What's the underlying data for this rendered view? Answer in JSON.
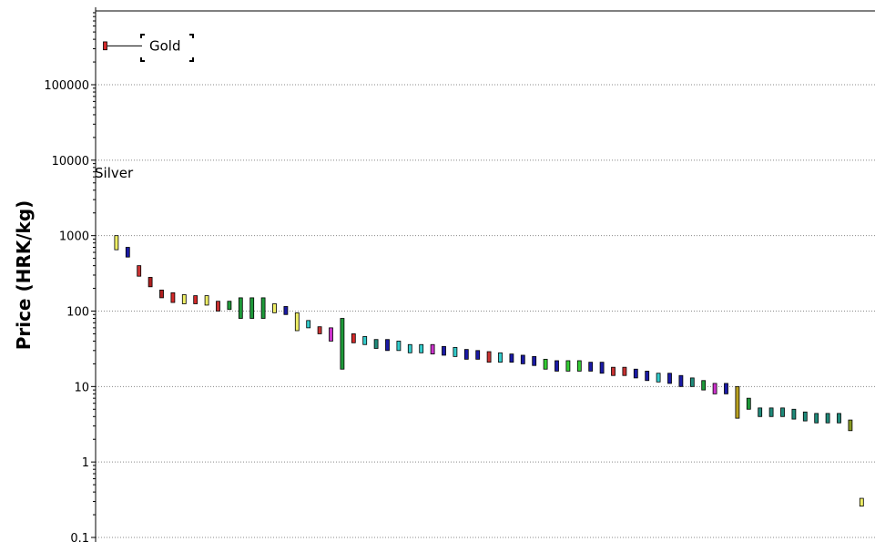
{
  "chart_data": {
    "type": "floating-bar",
    "ylabel": "Price (HRK/kg)",
    "yscale": "log",
    "ylim": [
      0.09,
      1000000
    ],
    "yticks": [
      {
        "value": 0.1,
        "label": "0.1"
      },
      {
        "value": 1,
        "label": "1"
      },
      {
        "value": 10,
        "label": "10"
      },
      {
        "value": 100,
        "label": "100"
      },
      {
        "value": 1000,
        "label": "1000"
      },
      {
        "value": 10000,
        "label": "10000"
      },
      {
        "value": 100000,
        "label": "100000"
      }
    ],
    "grid": {
      "horizontal": true,
      "style": "dotted"
    },
    "annotations": [
      {
        "text": "Gold",
        "boxed": true
      },
      {
        "text": "Silver",
        "boxed": false
      }
    ],
    "series": [
      {
        "low": 290000,
        "high": 370000,
        "color": "#d42a2a"
      },
      {
        "low": 650,
        "high": 1000,
        "color": "#eeee66"
      },
      {
        "low": 520,
        "high": 700,
        "color": "#1a1aa6"
      },
      {
        "low": 290,
        "high": 400,
        "color": "#c83232"
      },
      {
        "low": 210,
        "high": 280,
        "color": "#b01f1f"
      },
      {
        "low": 150,
        "high": 190,
        "color": "#b01f1f"
      },
      {
        "low": 130,
        "high": 175,
        "color": "#d42a2a"
      },
      {
        "low": 125,
        "high": 165,
        "color": "#eeee66"
      },
      {
        "low": 125,
        "high": 160,
        "color": "#d42a2a"
      },
      {
        "low": 120,
        "high": 160,
        "color": "#eeee66"
      },
      {
        "low": 100,
        "high": 135,
        "color": "#c83232"
      },
      {
        "low": 105,
        "high": 135,
        "color": "#1f9a3a"
      },
      {
        "low": 80,
        "high": 150,
        "color": "#1f9a3a"
      },
      {
        "low": 80,
        "high": 150,
        "color": "#1f9a3a"
      },
      {
        "low": 80,
        "high": 150,
        "color": "#1f9a3a"
      },
      {
        "low": 95,
        "high": 125,
        "color": "#eeee66"
      },
      {
        "low": 90,
        "high": 115,
        "color": "#1a1aa6"
      },
      {
        "low": 55,
        "high": 95,
        "color": "#eeee66"
      },
      {
        "low": 60,
        "high": 75,
        "color": "#33cccc"
      },
      {
        "low": 50,
        "high": 62,
        "color": "#c83232"
      },
      {
        "low": 40,
        "high": 60,
        "color": "#cc33cc"
      },
      {
        "low": 17,
        "high": 80,
        "color": "#1f9a3a"
      },
      {
        "low": 38,
        "high": 50,
        "color": "#d42a2a"
      },
      {
        "low": 36,
        "high": 46,
        "color": "#33cccc"
      },
      {
        "low": 32,
        "high": 42,
        "color": "#1f8a7a"
      },
      {
        "low": 30,
        "high": 42,
        "color": "#1a1aa6"
      },
      {
        "low": 30,
        "high": 40,
        "color": "#33cccc"
      },
      {
        "low": 28,
        "high": 36,
        "color": "#33cccc"
      },
      {
        "low": 28,
        "high": 36,
        "color": "#33cccc"
      },
      {
        "low": 27,
        "high": 36,
        "color": "#cc33cc"
      },
      {
        "low": 26,
        "high": 34,
        "color": "#1a1aa6"
      },
      {
        "low": 25,
        "high": 33,
        "color": "#33cccc"
      },
      {
        "low": 23,
        "high": 31,
        "color": "#1a1aa6"
      },
      {
        "low": 23,
        "high": 30,
        "color": "#1a1aa6"
      },
      {
        "low": 21,
        "high": 29,
        "color": "#c83232"
      },
      {
        "low": 21,
        "high": 28,
        "color": "#33cccc"
      },
      {
        "low": 21,
        "high": 27,
        "color": "#1a1aa6"
      },
      {
        "low": 20,
        "high": 26,
        "color": "#1a1aa6"
      },
      {
        "low": 19,
        "high": 25,
        "color": "#1a1aa6"
      },
      {
        "low": 17,
        "high": 23,
        "color": "#33cc33"
      },
      {
        "low": 16,
        "high": 22,
        "color": "#1a1aa6"
      },
      {
        "low": 16,
        "high": 22,
        "color": "#33cc33"
      },
      {
        "low": 16,
        "high": 22,
        "color": "#33cc33"
      },
      {
        "low": 16,
        "high": 21,
        "color": "#1a1aa6"
      },
      {
        "low": 15,
        "high": 21,
        "color": "#1a1aa6"
      },
      {
        "low": 14,
        "high": 18,
        "color": "#c83232"
      },
      {
        "low": 14,
        "high": 18,
        "color": "#c83232"
      },
      {
        "low": 13,
        "high": 17,
        "color": "#1a1aa6"
      },
      {
        "low": 12,
        "high": 16,
        "color": "#1a1aa6"
      },
      {
        "low": 11.5,
        "high": 15,
        "color": "#33cccc"
      },
      {
        "low": 11,
        "high": 15,
        "color": "#1a1aa6"
      },
      {
        "low": 10,
        "high": 14,
        "color": "#1a1aa6"
      },
      {
        "low": 10,
        "high": 13,
        "color": "#1f8a7a"
      },
      {
        "low": 9,
        "high": 12,
        "color": "#1f9a3a"
      },
      {
        "low": 8,
        "high": 11,
        "color": "#cc33cc"
      },
      {
        "low": 8,
        "high": 11,
        "color": "#1a1aa6"
      },
      {
        "low": 3.8,
        "high": 10,
        "color": "#b8a020"
      },
      {
        "low": 5,
        "high": 7,
        "color": "#1f9a3a"
      },
      {
        "low": 4,
        "high": 5.2,
        "color": "#1f8a7a"
      },
      {
        "low": 4,
        "high": 5.2,
        "color": "#1f8a7a"
      },
      {
        "low": 4,
        "high": 5.2,
        "color": "#1f8a7a"
      },
      {
        "low": 3.7,
        "high": 5,
        "color": "#1f8a7a"
      },
      {
        "low": 3.5,
        "high": 4.6,
        "color": "#1f8a7a"
      },
      {
        "low": 3.3,
        "high": 4.4,
        "color": "#1f8a7a"
      },
      {
        "low": 3.3,
        "high": 4.4,
        "color": "#1f8a7a"
      },
      {
        "low": 3.3,
        "high": 4.4,
        "color": "#1f8a7a"
      },
      {
        "low": 2.6,
        "high": 3.6,
        "color": "#889922"
      },
      {
        "low": 0.26,
        "high": 0.33,
        "color": "#eeee66"
      }
    ]
  }
}
